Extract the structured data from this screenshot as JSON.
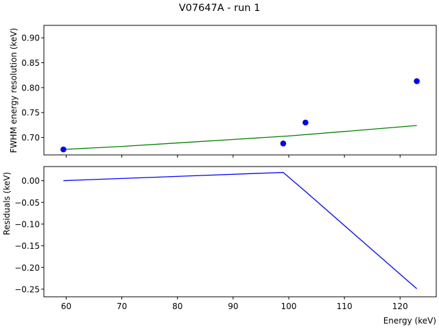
{
  "chart_data": {
    "title": "V07647A - run 1",
    "xlabel": "Energy (keV)",
    "xlim": [
      56,
      126.5
    ],
    "xticks": [
      60,
      70,
      80,
      90,
      100,
      110,
      120
    ],
    "panels": [
      {
        "type": "scatter+line",
        "ylabel": "FWHM energy resolution (keV)",
        "ylim": [
          0.665,
          0.925
        ],
        "yticks": [
          0.7,
          0.75,
          0.8,
          0.85,
          0.9
        ],
        "ytick_labels": [
          "0.70",
          "0.75",
          "0.80",
          "0.85",
          "0.90"
        ],
        "points": {
          "color": "#0000ff",
          "x": [
            59.5,
            99.0,
            103.0,
            123.0
          ],
          "y": [
            0.676,
            0.688,
            0.73,
            0.813
          ]
        },
        "fit_line": {
          "color": "#008000",
          "x": [
            59.5,
            70,
            80,
            90,
            100,
            110,
            123
          ],
          "y": [
            0.676,
            0.682,
            0.689,
            0.696,
            0.703,
            0.712,
            0.724
          ]
        }
      },
      {
        "type": "line",
        "ylabel": "Residuals (keV)",
        "ylim": [
          -0.2675,
          0.0325
        ],
        "yticks": [
          0.0,
          -0.05,
          -0.1,
          -0.15,
          -0.2,
          -0.25
        ],
        "ytick_labels": [
          "0.00",
          "−0.05",
          "−0.10",
          "−0.15",
          "−0.20",
          "−0.25"
        ],
        "line": {
          "color": "#0000ff",
          "x": [
            59.5,
            99.0,
            103.0,
            123.0
          ],
          "y": [
            0.0,
            0.019,
            -0.025,
            -0.249
          ]
        }
      }
    ]
  }
}
